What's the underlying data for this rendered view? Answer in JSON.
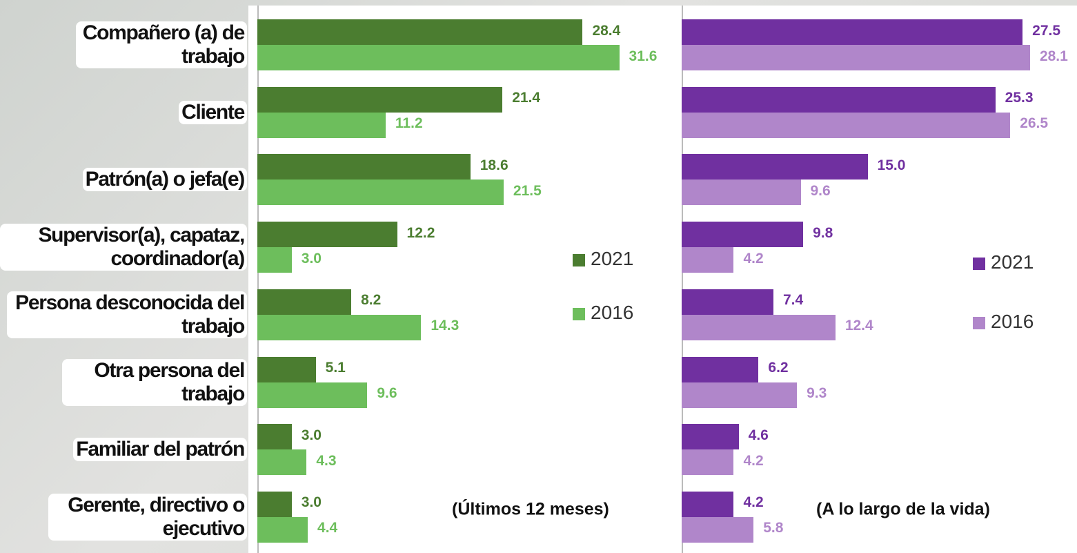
{
  "chart_data": [
    {
      "type": "bar",
      "orientation": "horizontal",
      "subtitle": "(Últimos 12 meses)",
      "categories": [
        "Compañero (a) de trabajo",
        "Cliente",
        "Patrón(a) o jefa(e)",
        "Supervisor(a), capataz, coordinador(a)",
        "Persona desconocida del trabajo",
        "Otra persona del trabajo",
        "Familiar del patrón",
        "Gerente, directivo o ejecutivo"
      ],
      "series": [
        {
          "name": "2021",
          "color": "#4b7d30",
          "values": [
            28.4,
            21.4,
            18.6,
            12.2,
            8.2,
            5.1,
            3.0,
            3.0
          ],
          "value_labels": [
            "28.4",
            "21.4",
            "18.6",
            "12.2",
            "8.2",
            "5.1",
            "3.0",
            "3.0"
          ]
        },
        {
          "name": "2016",
          "color": "#6dbe5c",
          "values": [
            31.6,
            11.2,
            21.5,
            3.0,
            14.3,
            9.6,
            4.3,
            4.4
          ],
          "value_labels": [
            "31.6",
            "11.2",
            "21.5",
            "3.0",
            "14.3",
            "9.6",
            "4.3",
            "4.4"
          ]
        }
      ]
    },
    {
      "type": "bar",
      "orientation": "horizontal",
      "subtitle": "(A lo largo de la vida)",
      "series": [
        {
          "name": "2021",
          "color": "#7030a0",
          "values": [
            27.5,
            25.3,
            15.0,
            9.8,
            7.4,
            6.2,
            4.6,
            4.2
          ],
          "value_labels": [
            "27.5",
            "25.3",
            "15.0",
            "9.8",
            "7.4",
            "6.2",
            "4.6",
            "4.2"
          ]
        },
        {
          "name": "2016",
          "color": "#b086ca",
          "values": [
            28.1,
            26.5,
            9.6,
            4.2,
            12.4,
            9.3,
            4.2,
            5.8
          ],
          "value_labels": [
            "28.1",
            "26.5",
            "9.6",
            "4.2",
            "12.4",
            "9.3",
            "4.2",
            "5.8"
          ]
        }
      ]
    }
  ]
}
